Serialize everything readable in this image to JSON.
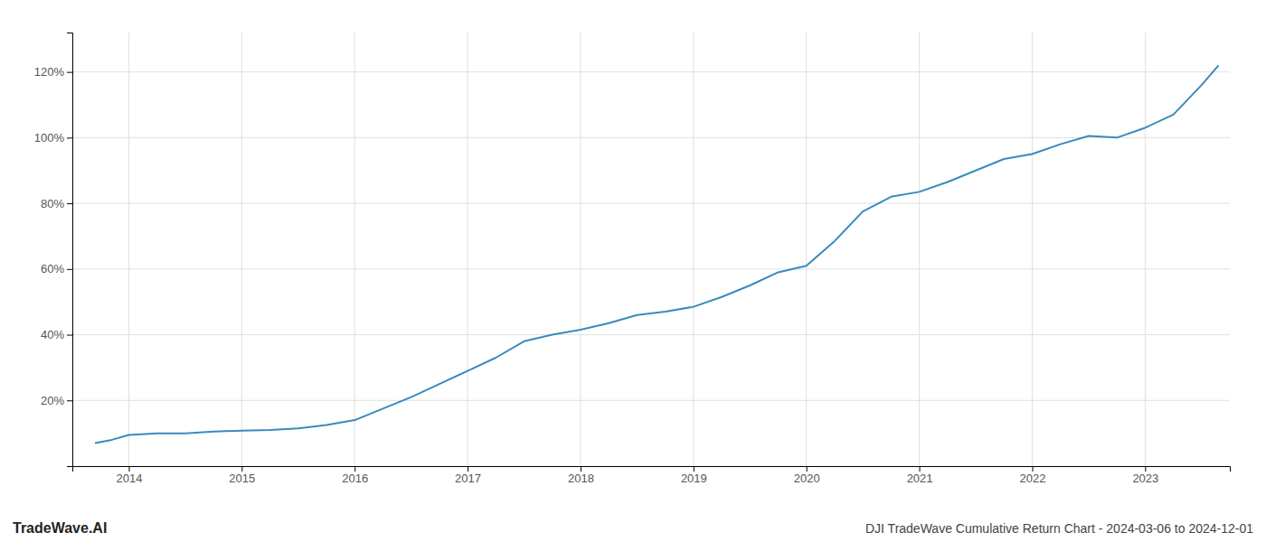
{
  "chart_data": {
    "type": "line",
    "title": "DJI TradeWave Cumulative Return Chart - 2024-03-06 to 2024-12-01",
    "annotations": [
      "TradeWave.AI"
    ],
    "x": [
      2013.7,
      2013.85,
      2014.0,
      2014.25,
      2014.5,
      2014.75,
      2015.0,
      2015.25,
      2015.5,
      2015.75,
      2016.0,
      2016.25,
      2016.5,
      2016.75,
      2017.0,
      2017.25,
      2017.5,
      2017.75,
      2018.0,
      2018.25,
      2018.5,
      2018.75,
      2019.0,
      2019.25,
      2019.5,
      2019.75,
      2020.0,
      2020.25,
      2020.5,
      2020.75,
      2021.0,
      2021.25,
      2021.5,
      2021.75,
      2022.0,
      2022.25,
      2022.5,
      2022.75,
      2023.0,
      2023.25,
      2023.5,
      2023.65
    ],
    "values": [
      7.0,
      8.0,
      9.5,
      10.0,
      10.0,
      10.5,
      10.8,
      11.0,
      11.5,
      12.5,
      14.0,
      17.5,
      21.0,
      25.0,
      29.0,
      33.0,
      38.0,
      40.0,
      41.5,
      43.5,
      46.0,
      47.0,
      48.5,
      51.5,
      55.0,
      59.0,
      61.0,
      68.5,
      77.5,
      82.0,
      83.5,
      86.5,
      90.0,
      93.5,
      95.0,
      98.0,
      100.5,
      100.0,
      103.0,
      107.0,
      116.0,
      122.0
    ],
    "color": "#3a8abf",
    "xlim": [
      2013.5,
      2023.75
    ],
    "ylim": [
      0,
      132
    ],
    "xticks": [
      2014,
      2015,
      2016,
      2017,
      2018,
      2019,
      2020,
      2021,
      2022,
      2023
    ],
    "yticks": [
      {
        "value": 20,
        "label": "20%"
      },
      {
        "value": 40,
        "label": "40%"
      },
      {
        "value": 60,
        "label": "60%"
      },
      {
        "value": 80,
        "label": "80%"
      },
      {
        "value": 100,
        "label": "100%"
      },
      {
        "value": 120,
        "label": "120%"
      }
    ],
    "grid": true
  }
}
